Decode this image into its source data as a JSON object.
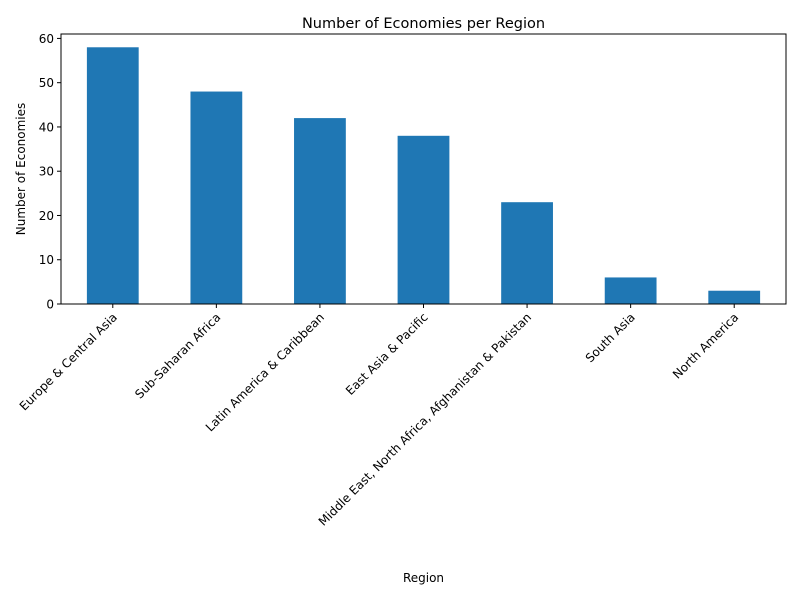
{
  "chart_data": {
    "type": "bar",
    "title": "Number of Economies per Region",
    "xlabel": "Region",
    "ylabel": "Number of Economies",
    "categories": [
      "Europe & Central Asia",
      "Sub-Saharan Africa",
      "Latin America & Caribbean",
      "East Asia & Pacific",
      "Middle East, North Africa, Afghanistan & Pakistan",
      "South Asia",
      "North America"
    ],
    "values": [
      58,
      48,
      42,
      38,
      23,
      6,
      3
    ],
    "ylim": [
      0,
      61
    ],
    "yticks": [
      0,
      10,
      20,
      30,
      40,
      50,
      60
    ],
    "grid": false,
    "legend": "none",
    "bar_color": "#1f77b4",
    "xtick_rotation_deg": 45
  }
}
